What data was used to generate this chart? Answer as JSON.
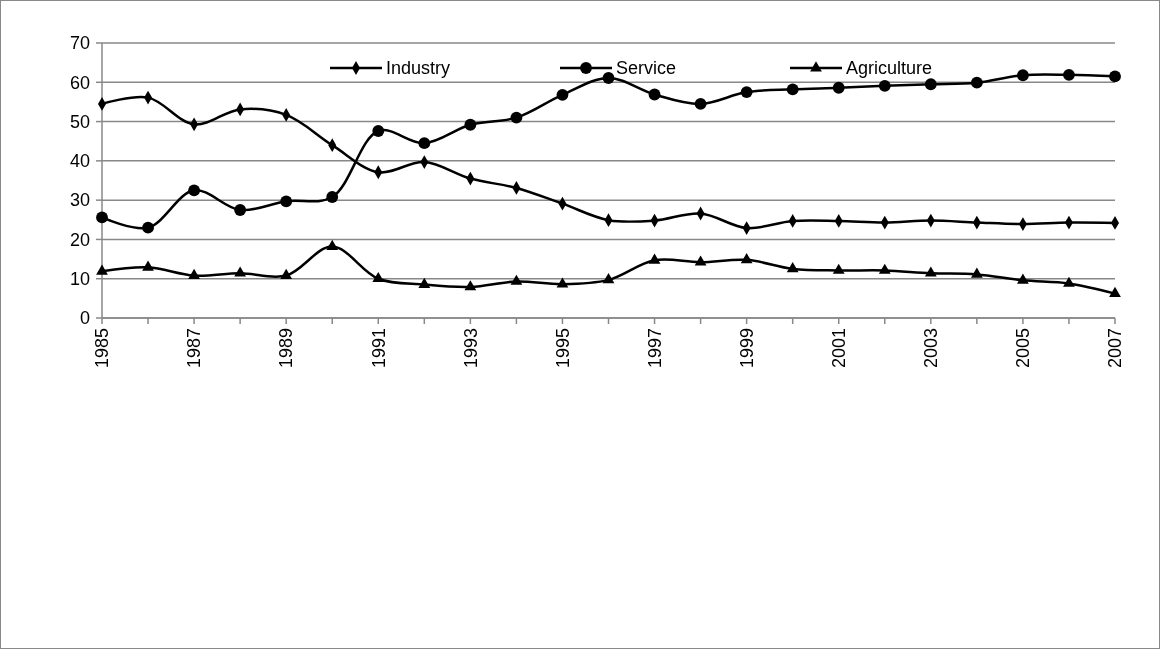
{
  "chart_data": {
    "type": "line",
    "categories": [
      "1985",
      null,
      "1987",
      null,
      "1989",
      null,
      "1991",
      null,
      "1993",
      null,
      "1995",
      null,
      "1997",
      null,
      "1999",
      null,
      "2001",
      null,
      "2003",
      null,
      "2005",
      null,
      "2007"
    ],
    "ylim": [
      0,
      70
    ],
    "yticks": [
      0,
      10,
      20,
      30,
      40,
      50,
      60,
      70
    ],
    "grid": "y",
    "legend": "top",
    "line_style": "solid",
    "series": [
      {
        "name": "Industry",
        "color": "#000000",
        "marker": "diamond",
        "values": [
          54.5,
          56.1,
          49.3,
          53.1,
          51.7,
          44,
          37.1,
          39.7,
          35.5,
          33.1,
          29.1,
          24.9,
          24.8,
          26.6,
          22.9,
          24.7,
          24.7,
          24.3,
          24.8,
          24.3,
          23.9,
          24.3,
          24.2
        ]
      },
      {
        "name": "Service",
        "color": "#000000",
        "marker": "circle",
        "values": [
          25.6,
          23,
          32.5,
          27.5,
          29.7,
          30.8,
          47.6,
          44.5,
          49.2,
          51,
          56.8,
          61.1,
          56.9,
          54.5,
          57.5,
          58.2,
          58.6,
          59.1,
          59.5,
          59.9,
          61.8,
          61.9,
          61.5
        ]
      },
      {
        "name": "Agriculture",
        "color": "#000000",
        "marker": "triangle",
        "values": [
          11.9,
          12.9,
          10.8,
          11.4,
          10.8,
          18.2,
          10,
          8.5,
          7.9,
          9.3,
          8.6,
          9.7,
          14.7,
          14.2,
          14.8,
          12.5,
          12.1,
          12.1,
          11.4,
          11.1,
          9.6,
          8.8,
          6.2
        ]
      }
    ]
  }
}
